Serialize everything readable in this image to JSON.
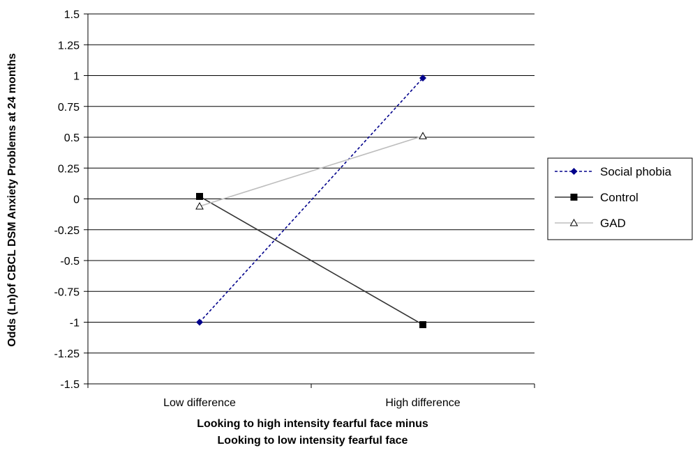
{
  "chart_data": {
    "type": "line",
    "title": "",
    "ylabel": "Odds (Ln)of CBCL DSM Anxiety Problems at 24 months",
    "xlabel_lines": [
      "Looking to high intensity fearful face minus",
      "Looking to low intensity fearful face"
    ],
    "categories": [
      "Low difference",
      "High difference"
    ],
    "ylim": [
      -1.5,
      1.5
    ],
    "yticks": [
      "1.5",
      "1.25",
      "1",
      "0.75",
      "0.5",
      "0.25",
      "0",
      "-0.25",
      "-0.5",
      "-0.75",
      "-1",
      "-1.25",
      "-1.5"
    ],
    "ytick_values": [
      1.5,
      1.25,
      1,
      0.75,
      0.5,
      0.25,
      0,
      -0.25,
      -0.5,
      -0.75,
      -1,
      -1.25,
      -1.5
    ],
    "grid": true,
    "legend_position": "right",
    "series": [
      {
        "name": "Social phobia",
        "values": [
          -1.0,
          0.98
        ],
        "color": "#00008B",
        "dash": "dashed",
        "marker": "diamond"
      },
      {
        "name": "Control",
        "values": [
          0.02,
          -1.02
        ],
        "color": "#333333",
        "dash": "solid",
        "marker": "square"
      },
      {
        "name": "GAD",
        "values": [
          -0.06,
          0.51
        ],
        "color": "#BDBDBD",
        "dash": "solid",
        "marker": "triangle"
      }
    ]
  }
}
